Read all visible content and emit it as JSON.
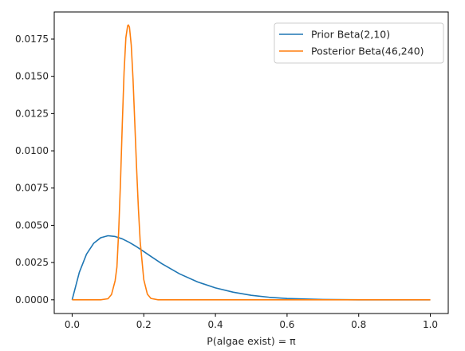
{
  "chart_data": {
    "type": "line",
    "xlabel": "P(algae exist) = π",
    "ylabel": "",
    "xlim": [
      -0.05,
      1.05
    ],
    "ylim": [
      -0.00092,
      0.01932
    ],
    "x_ticks": [
      0.0,
      0.2,
      0.4,
      0.6,
      0.8,
      1.0
    ],
    "x_tick_labels": [
      "0.0",
      "0.2",
      "0.4",
      "0.6",
      "0.8",
      "1.0"
    ],
    "y_ticks": [
      0.0,
      0.0025,
      0.005,
      0.0075,
      0.01,
      0.0125,
      0.015,
      0.0175
    ],
    "y_tick_labels": [
      "0.0000",
      "0.0025",
      "0.0050",
      "0.0075",
      "0.0100",
      "0.0125",
      "0.0150",
      "0.0175"
    ],
    "grid": false,
    "legend_position": "top-right",
    "series": [
      {
        "name": "Prior Beta(2,10)",
        "color": "#1f77b4",
        "x": [
          0.0,
          0.02,
          0.04,
          0.06,
          0.08,
          0.1,
          0.12,
          0.14,
          0.16,
          0.18,
          0.2,
          0.22,
          0.25,
          0.3,
          0.35,
          0.4,
          0.45,
          0.5,
          0.55,
          0.6,
          0.7,
          0.8,
          0.9,
          1.0
        ],
        "values": [
          0.0,
          0.00184,
          0.00306,
          0.00379,
          0.00417,
          0.0043,
          0.00425,
          0.00409,
          0.00385,
          0.00356,
          0.00324,
          0.00291,
          0.00243,
          0.00174,
          0.0012,
          0.0008,
          0.00051,
          0.0003,
          0.00017,
          9e-05,
          2e-05,
          0.0,
          0.0,
          0.0
        ]
      },
      {
        "name": "Posterior Beta(46,240)",
        "color": "#ff7f0e",
        "x": [
          0.0,
          0.08,
          0.1,
          0.11,
          0.12,
          0.125,
          0.13,
          0.135,
          0.14,
          0.145,
          0.15,
          0.155,
          0.157,
          0.16,
          0.165,
          0.17,
          0.175,
          0.18,
          0.185,
          0.19,
          0.2,
          0.21,
          0.22,
          0.24,
          0.26,
          0.3,
          1.0
        ],
        "values": [
          0.0,
          0.0,
          7e-05,
          0.00036,
          0.00128,
          0.0022,
          0.00466,
          0.00792,
          0.0118,
          0.0153,
          0.0176,
          0.0184,
          0.01845,
          0.0183,
          0.0171,
          0.0148,
          0.0118,
          0.0088,
          0.0061,
          0.0039,
          0.00135,
          0.00038,
          9e-05,
          0.0,
          0.0,
          0.0,
          0.0
        ]
      }
    ]
  }
}
